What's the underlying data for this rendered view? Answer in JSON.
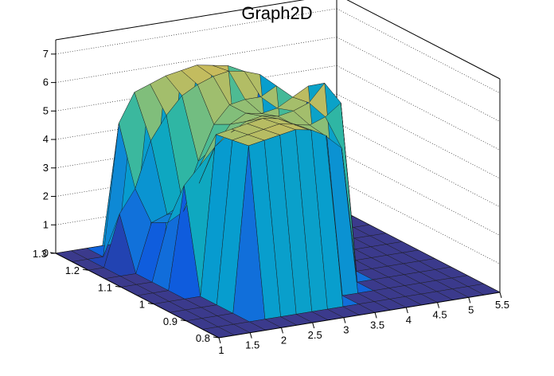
{
  "chart_data": {
    "type": "surface",
    "title": "Graph2D",
    "xlabel": "",
    "ylabel": "",
    "zlabel": "",
    "xlim": [
      1,
      5.5
    ],
    "ylim": [
      0.8,
      1.3
    ],
    "zlim": [
      0,
      7.5
    ],
    "x_ticks": [
      "1",
      "1.5",
      "2",
      "2.5",
      "3",
      "3.5",
      "4",
      "4.5",
      "5",
      "5.5"
    ],
    "y_ticks": [
      "0.8",
      "0.9",
      "1",
      "1.1",
      "1.2",
      "1.3"
    ],
    "z_ticks": [
      "0",
      "1",
      "2",
      "3",
      "4",
      "5",
      "6",
      "7"
    ],
    "x_grid": [
      1.0,
      1.25,
      1.5,
      1.75,
      2.0,
      2.25,
      2.5,
      2.75,
      3.0,
      3.25,
      3.5,
      3.75,
      4.0,
      4.25,
      4.5,
      4.75,
      5.0,
      5.25,
      5.5
    ],
    "y_grid": [
      0.8,
      0.85,
      0.9,
      0.95,
      1.0,
      1.05,
      1.1,
      1.15,
      1.2,
      1.25,
      1.3
    ],
    "z": [
      [
        0,
        0,
        0,
        0,
        0,
        0,
        0,
        0,
        0,
        0,
        0,
        0,
        0,
        0,
        0,
        0,
        0,
        0,
        0
      ],
      [
        0,
        0,
        0,
        0,
        0,
        0,
        0,
        0,
        0,
        0,
        0,
        0,
        0,
        0,
        0,
        0,
        0,
        0,
        0
      ],
      [
        0,
        0,
        0,
        0,
        5.8,
        5.9,
        6.0,
        6.1,
        6.0,
        5.7,
        0,
        0,
        0,
        0,
        0,
        0,
        0,
        0,
        0
      ],
      [
        0,
        0,
        0,
        0,
        5.7,
        5.8,
        5.9,
        6.0,
        5.9,
        5.6,
        5.3,
        4.8,
        0,
        0,
        0,
        0,
        0,
        0,
        0
      ],
      [
        0,
        0,
        0,
        0,
        5.6,
        5.7,
        5.8,
        5.9,
        5.8,
        5.5,
        5.4,
        5.6,
        6.0,
        0,
        0,
        0,
        0,
        0,
        0
      ],
      [
        0,
        0,
        0,
        3.6,
        4.2,
        4.8,
        5.2,
        5.5,
        5.6,
        5.5,
        5.6,
        5.8,
        6.4,
        0,
        0,
        0,
        0,
        0,
        0
      ],
      [
        0,
        0,
        0,
        2.0,
        2.3,
        3.2,
        4.4,
        5.1,
        5.4,
        5.3,
        5.4,
        5.7,
        6.0,
        0,
        0,
        0,
        0,
        0,
        0
      ],
      [
        0,
        0,
        0,
        1.7,
        1.9,
        2.2,
        3.6,
        4.8,
        5.4,
        5.5,
        5.5,
        5.8,
        0,
        0,
        0,
        0,
        0,
        0,
        0
      ],
      [
        0,
        0,
        1.8,
        2.6,
        4.2,
        5.0,
        5.6,
        5.9,
        6.1,
        6.2,
        6.1,
        5.9,
        0,
        0,
        0,
        0,
        0,
        0,
        0
      ],
      [
        0,
        0,
        0,
        4.6,
        5.6,
        5.8,
        6.0,
        6.1,
        6.2,
        6.1,
        6.0,
        0,
        0,
        0,
        0,
        0,
        0,
        0,
        0
      ],
      [
        0,
        0,
        0,
        0,
        0,
        0,
        0,
        0,
        0,
        0,
        0,
        0,
        0,
        0,
        0,
        0,
        0,
        0,
        0
      ]
    ],
    "grid": true,
    "colormap": "parula"
  }
}
